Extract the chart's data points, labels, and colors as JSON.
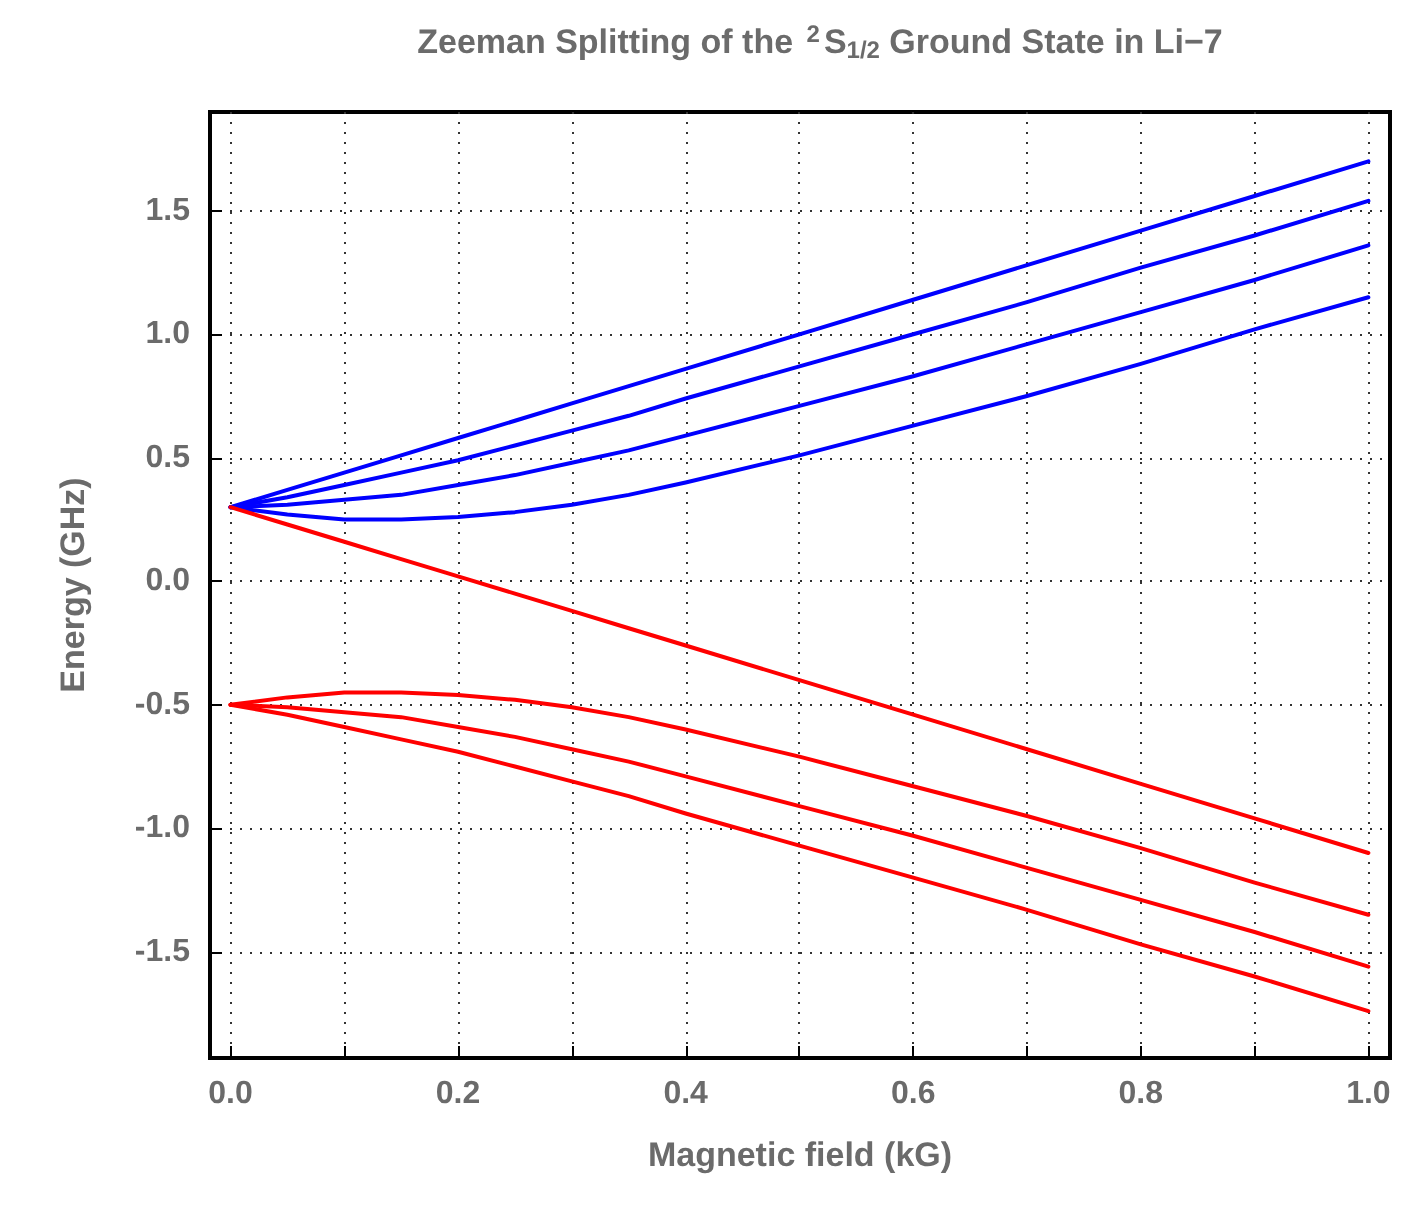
{
  "chart_data": {
    "type": "line",
    "title": "Zeeman Splitting of the $^{2}$S$_{1/2}$ Ground State in Li−7",
    "xlabel": "Magnetic field (kG)",
    "ylabel": "Energy (GHz)",
    "x": [
      0,
      0.05,
      0.1,
      0.15,
      0.2,
      0.25,
      0.3,
      0.35,
      0.4,
      0.5,
      0.6,
      0.7,
      0.8,
      0.9,
      1.0
    ],
    "series": [
      {
        "color": "#0000ff",
        "values": [
          0.3,
          0.37,
          0.44,
          0.51,
          0.58,
          0.65,
          0.72,
          0.79,
          0.86,
          1.0,
          1.14,
          1.28,
          1.42,
          1.56,
          1.7
        ]
      },
      {
        "color": "#0000ff",
        "values": [
          0.3,
          0.34,
          0.39,
          0.44,
          0.49,
          0.55,
          0.61,
          0.67,
          0.74,
          0.87,
          1.0,
          1.13,
          1.27,
          1.4,
          1.54
        ]
      },
      {
        "color": "#0000ff",
        "values": [
          0.3,
          0.31,
          0.33,
          0.35,
          0.39,
          0.43,
          0.48,
          0.53,
          0.59,
          0.71,
          0.83,
          0.96,
          1.09,
          1.22,
          1.36
        ]
      },
      {
        "color": "#0000ff",
        "values": [
          0.3,
          0.27,
          0.25,
          0.25,
          0.26,
          0.28,
          0.31,
          0.35,
          0.4,
          0.51,
          0.63,
          0.75,
          0.88,
          1.02,
          1.15
        ]
      },
      {
        "color": "#ff0000",
        "values": [
          0.3,
          0.23,
          0.16,
          0.09,
          0.02,
          -0.05,
          -0.12,
          -0.19,
          -0.26,
          -0.4,
          -0.54,
          -0.68,
          -0.82,
          -0.96,
          -1.1
        ]
      },
      {
        "color": "#ff0000",
        "values": [
          -0.5,
          -0.47,
          -0.45,
          -0.45,
          -0.46,
          -0.48,
          -0.51,
          -0.55,
          -0.6,
          -0.71,
          -0.83,
          -0.95,
          -1.08,
          -1.22,
          -1.35
        ]
      },
      {
        "color": "#ff0000",
        "values": [
          -0.5,
          -0.51,
          -0.53,
          -0.55,
          -0.59,
          -0.63,
          -0.68,
          -0.73,
          -0.79,
          -0.91,
          -1.03,
          -1.16,
          -1.29,
          -1.42,
          -1.56
        ]
      },
      {
        "color": "#ff0000",
        "values": [
          -0.5,
          -0.54,
          -0.59,
          -0.64,
          -0.69,
          -0.75,
          -0.81,
          -0.87,
          -0.94,
          -1.07,
          -1.2,
          -1.33,
          -1.47,
          -1.6,
          -1.74
        ]
      }
    ],
    "xlim": [
      -0.018,
      1.019
    ],
    "ylim": [
      -1.93,
      1.9
    ],
    "xticks": [
      {
        "value": 0,
        "label": "0.0"
      },
      {
        "value": 0.1,
        "label": null
      },
      0.2,
      {
        "value": 0.3,
        "label": null
      },
      0.4,
      {
        "value": 0.5,
        "label": null
      },
      0.6,
      {
        "value": 0.7,
        "label": null
      },
      0.8,
      {
        "value": 0.9,
        "label": null
      },
      {
        "value": 1,
        "label": "1.0"
      }
    ],
    "yticks": [
      -1.5,
      {
        "value": -1,
        "label": "-1.0"
      },
      -0.5,
      {
        "value": 0,
        "label": "0.0"
      },
      0.5,
      {
        "value": 1,
        "label": "1.0"
      },
      1.5
    ],
    "grid": true,
    "marker": "none",
    "line_style": "solid"
  }
}
